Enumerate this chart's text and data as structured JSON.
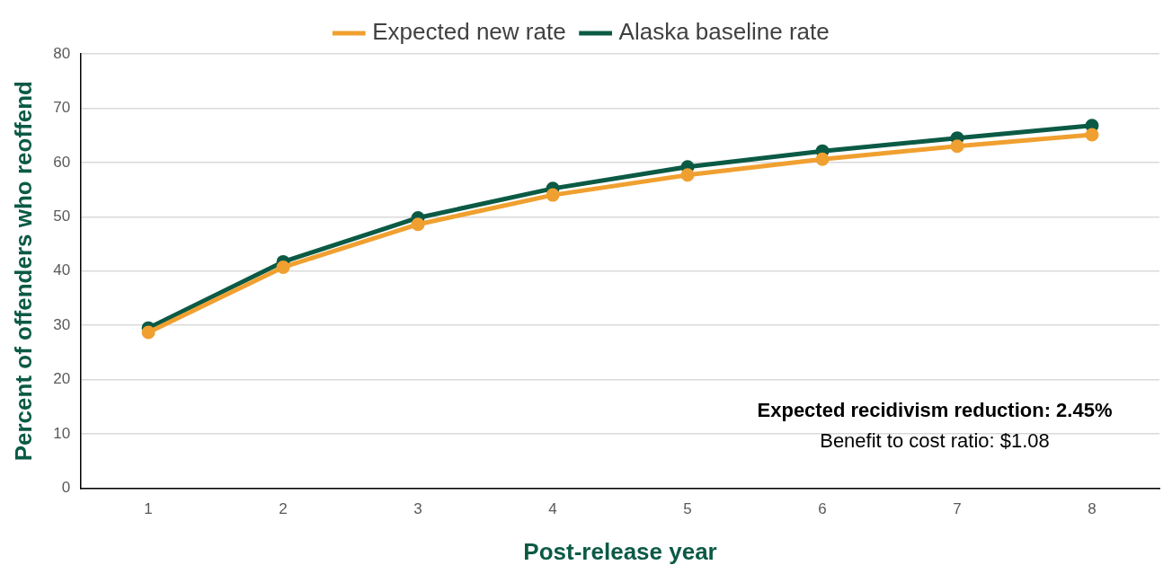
{
  "chart_data": {
    "type": "line",
    "xlabel": "Post-release year",
    "ylabel": "Percent of offenders who reoffend",
    "categories": [
      "1",
      "2",
      "3",
      "4",
      "5",
      "6",
      "7",
      "8"
    ],
    "series": [
      {
        "name": "Alaska baseline rate",
        "color": "#0b5a45",
        "values": [
          29.5,
          41.7,
          49.8,
          55.2,
          59.2,
          62.1,
          64.5,
          66.8
        ]
      },
      {
        "name": "Expected new rate",
        "color": "#f0a030",
        "values": [
          28.7,
          40.7,
          48.6,
          54.0,
          57.7,
          60.6,
          63.0,
          65.1
        ]
      }
    ],
    "ylim": [
      0,
      80
    ],
    "yticks": [
      0,
      10,
      20,
      30,
      40,
      50,
      60,
      70,
      80
    ],
    "grid": "y",
    "legend": "top",
    "marker": "circle",
    "line_style": "solid",
    "annotations": [
      "Expected recidivism reduction: 2.45%",
      "Benefit to cost ratio: $1.08"
    ]
  }
}
